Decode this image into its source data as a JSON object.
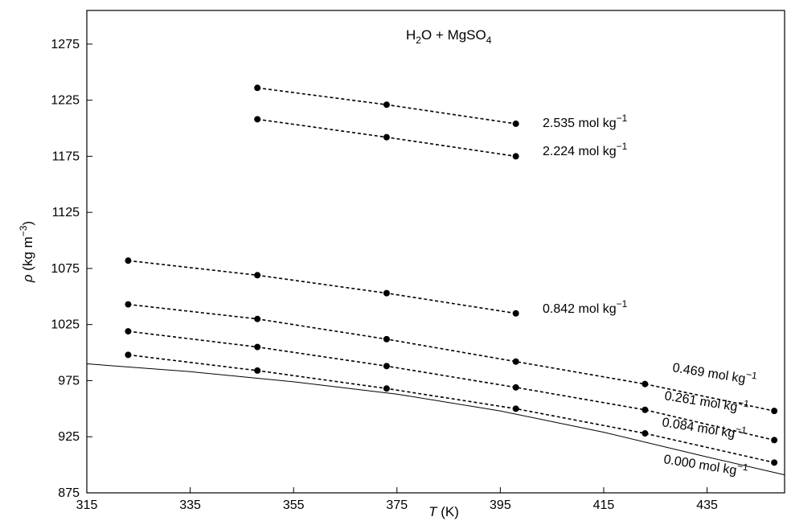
{
  "chart_data": {
    "type": "line",
    "title": "",
    "annotation": {
      "main": "H",
      "sub1": "2",
      "mid": "O + MgSO",
      "sub2": "4"
    },
    "xlabel": {
      "symbol": "T",
      "unit": " (K)"
    },
    "ylabel": {
      "symbol": "ρ",
      "unit": " (kg m",
      "sup": "−3",
      "close": ")"
    },
    "xlim": [
      315,
      450
    ],
    "ylim": [
      875,
      1305
    ],
    "xticks": [
      315,
      335,
      355,
      375,
      395,
      415,
      435
    ],
    "yticks": [
      875,
      925,
      975,
      1025,
      1075,
      1125,
      1175,
      1225,
      1275
    ],
    "grid": false,
    "unit_text": {
      "base": " mol kg",
      "sup": "−1"
    },
    "series": [
      {
        "name": "2.535",
        "style": "dashed-markers",
        "x": [
          348,
          373,
          398
        ],
        "y": [
          1236,
          1221,
          1204
        ]
      },
      {
        "name": "2.224",
        "style": "dashed-markers",
        "x": [
          348,
          373,
          398
        ],
        "y": [
          1208,
          1192,
          1175
        ]
      },
      {
        "name": "0.842",
        "style": "dashed-markers",
        "x": [
          323,
          348,
          373,
          398
        ],
        "y": [
          1082,
          1069,
          1053,
          1035
        ]
      },
      {
        "name": "0.469",
        "style": "dashed-markers",
        "x": [
          323,
          348,
          373,
          398,
          423,
          448
        ],
        "y": [
          1043,
          1030,
          1012,
          992,
          972,
          948
        ]
      },
      {
        "name": "0.261",
        "style": "dashed-markers",
        "x": [
          323,
          348,
          373,
          398,
          423,
          448
        ],
        "y": [
          1019,
          1005,
          988,
          969,
          949,
          922
        ]
      },
      {
        "name": "0.084",
        "style": "dashed-markers",
        "x": [
          323,
          348,
          373,
          398,
          423,
          448
        ],
        "y": [
          998,
          984,
          968,
          950,
          928,
          902
        ]
      },
      {
        "name": "0.000",
        "style": "solid",
        "x": [
          315,
          335,
          355,
          375,
          395,
          415,
          435,
          450
        ],
        "y": [
          990,
          983,
          974,
          963,
          948,
          929,
          907,
          891
        ]
      }
    ]
  }
}
